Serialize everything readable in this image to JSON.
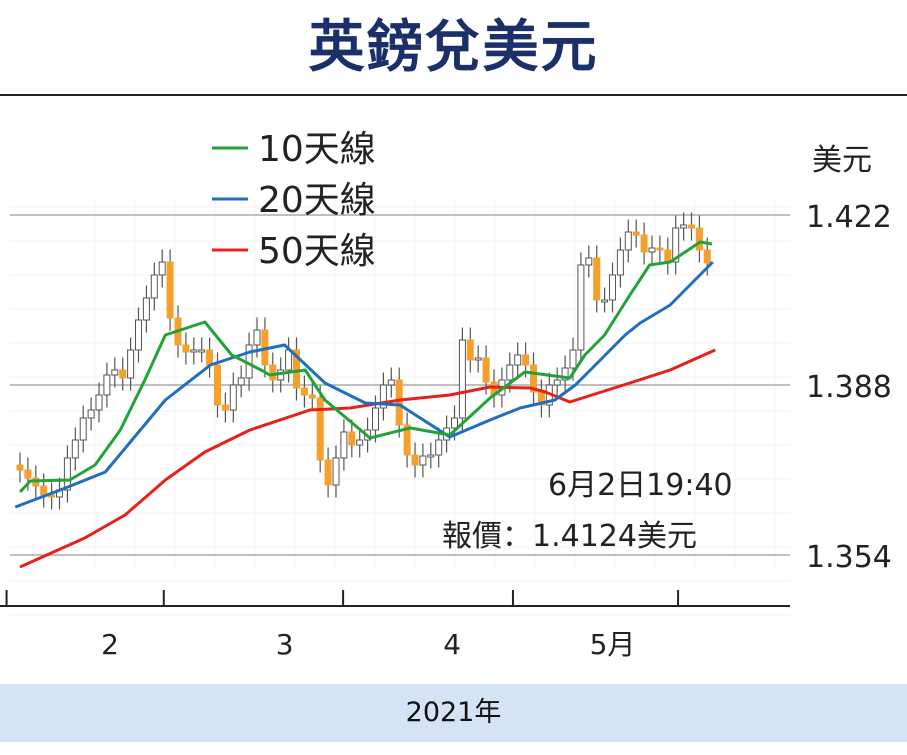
{
  "title": "英鎊兌美元",
  "footer": "2021年",
  "colors": {
    "title": "#1b2f6b",
    "ma10": "#22a33a",
    "ma20": "#1f6fbf",
    "ma50": "#e8201a",
    "bear": "#f5a02a",
    "bull": "#ffffff",
    "band": "#d4e4f4"
  },
  "chart_data": {
    "type": "candlestick",
    "title": "英鎊兌美元",
    "unit_label": "美元",
    "ylim": [
      1.34,
      1.43
    ],
    "yticks": [
      1.422,
      1.388,
      1.354
    ],
    "ytick_labels": [
      "1.422",
      "1.388",
      "1.354"
    ],
    "xtick_positions": [
      -1.7,
      18.2,
      40.9,
      62.4,
      83.3
    ],
    "month_labels": [
      {
        "label": "2",
        "at": 11.4
      },
      {
        "label": "3",
        "at": 33.5
      },
      {
        "label": "4",
        "at": 54.7
      },
      {
        "label": "5月",
        "at": 75
      }
    ],
    "xlabel": "2021年",
    "legend": [
      {
        "key": "ma10",
        "label": "10天線"
      },
      {
        "key": "ma20",
        "label": "20天線"
      },
      {
        "key": "ma50",
        "label": "50天線"
      }
    ],
    "legend_position": "top-left",
    "annotation": {
      "line1": "6月2日19:40",
      "line2": "報價：1.4124美元"
    },
    "first_open": 1.372,
    "wick": 0.0025,
    "closes": [
      1.371,
      1.3694,
      1.3678,
      1.366,
      1.3656,
      1.367,
      1.3734,
      1.377,
      1.3814,
      1.383,
      1.386,
      1.39,
      1.391,
      1.3894,
      1.395,
      1.401,
      1.4054,
      1.41,
      1.4126,
      1.4014,
      1.396,
      1.3946,
      1.395,
      1.395,
      1.392,
      1.384,
      1.383,
      1.388,
      1.3894,
      1.396,
      1.399,
      1.392,
      1.389,
      1.391,
      1.395,
      1.3874,
      1.386,
      1.3854,
      1.373,
      1.368,
      1.3734,
      1.3786,
      1.376,
      1.377,
      1.379,
      1.3834,
      1.388,
      1.389,
      1.38,
      1.374,
      1.372,
      1.3738,
      1.374,
      1.377,
      1.3794,
      1.3814,
      1.397,
      1.393,
      1.3934,
      1.3886,
      1.386,
      1.389,
      1.392,
      1.394,
      1.392,
      1.3866,
      1.384,
      1.388,
      1.389,
      1.3914,
      1.395,
      1.412,
      1.4134,
      1.405,
      1.405,
      1.41,
      1.415,
      1.4186,
      1.418,
      1.4146,
      1.4154,
      1.415,
      1.4126,
      1.4194,
      1.42,
      1.4194,
      1.415,
      1.4124
    ],
    "series": {
      "ma10": [
        [
          0,
          1.3666
        ],
        [
          1.3,
          1.3688
        ],
        [
          6.3,
          1.369
        ],
        [
          9.5,
          1.372
        ],
        [
          12.7,
          1.379
        ],
        [
          15.8,
          1.389
        ],
        [
          18.4,
          1.398
        ],
        [
          23.4,
          1.4006
        ],
        [
          26.8,
          1.394
        ],
        [
          31,
          1.3906
        ],
        [
          31.6,
          1.39
        ],
        [
          36.1,
          1.391
        ],
        [
          38.6,
          1.385
        ],
        [
          44.3,
          1.3774
        ],
        [
          49.4,
          1.3794
        ],
        [
          54.4,
          1.378
        ],
        [
          59.5,
          1.3854
        ],
        [
          63.9,
          1.3906
        ],
        [
          69.6,
          1.3894
        ],
        [
          71.5,
          1.394
        ],
        [
          74,
          1.398
        ],
        [
          77.2,
          1.406
        ],
        [
          79.7,
          1.412
        ],
        [
          82.3,
          1.4126
        ],
        [
          86.1,
          1.4166
        ],
        [
          87.6,
          1.4162
        ]
      ],
      "ma20": [
        [
          -0.6,
          1.3636
        ],
        [
          5.1,
          1.367
        ],
        [
          10.8,
          1.3706
        ],
        [
          18.4,
          1.385
        ],
        [
          24.1,
          1.392
        ],
        [
          29.1,
          1.3946
        ],
        [
          33.5,
          1.396
        ],
        [
          38.6,
          1.3884
        ],
        [
          43.7,
          1.3844
        ],
        [
          48.1,
          1.384
        ],
        [
          54.4,
          1.3776
        ],
        [
          59.5,
          1.381
        ],
        [
          63.3,
          1.3834
        ],
        [
          67.7,
          1.385
        ],
        [
          70.3,
          1.388
        ],
        [
          72.2,
          1.391
        ],
        [
          76.6,
          1.398
        ],
        [
          78.5,
          1.4004
        ],
        [
          82.3,
          1.404
        ],
        [
          87.7,
          1.4126
        ]
      ],
      "ma50": [
        [
          0,
          1.3516
        ],
        [
          8.2,
          1.3574
        ],
        [
          13.3,
          1.362
        ],
        [
          18.4,
          1.369
        ],
        [
          23.4,
          1.3746
        ],
        [
          29.1,
          1.379
        ],
        [
          36.7,
          1.383
        ],
        [
          41.8,
          1.3834
        ],
        [
          48.1,
          1.385
        ],
        [
          54.4,
          1.386
        ],
        [
          59.5,
          1.3876
        ],
        [
          64.6,
          1.3874
        ],
        [
          66.5,
          1.3866
        ],
        [
          69.6,
          1.3846
        ],
        [
          77.2,
          1.3884
        ],
        [
          82.3,
          1.391
        ],
        [
          88,
          1.395
        ]
      ]
    }
  }
}
